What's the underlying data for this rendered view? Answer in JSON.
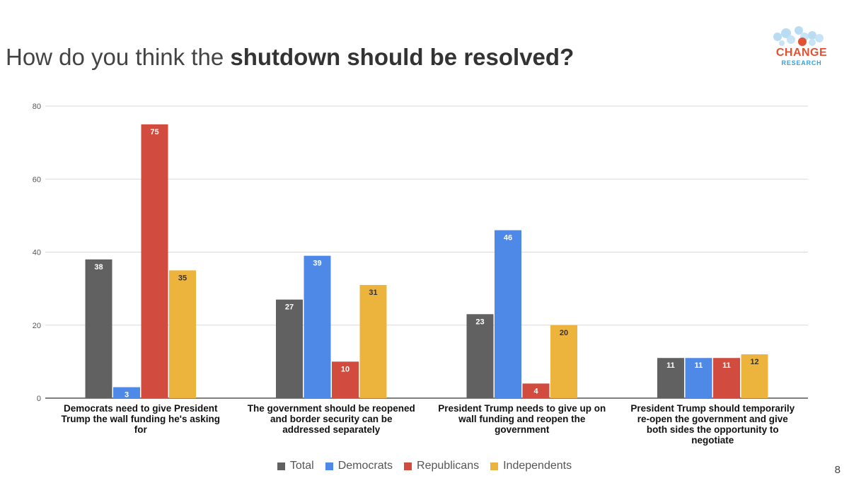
{
  "slide": {
    "title_prefix": "How do you think the ",
    "title_bold": "shutdown should be resolved?",
    "page_number": "8"
  },
  "logo": {
    "text": "CHANGE",
    "subtext": "RESEARCH",
    "colors": {
      "text": "#e05233",
      "sub": "#3aa0d8",
      "dots": "#b8dcf2",
      "accent_dot": "#e05233"
    }
  },
  "chart_data": {
    "type": "bar",
    "categories": [
      [
        "Democrats need to give President",
        "Trump the wall funding he's asking",
        "for"
      ],
      [
        "The government should be reopened",
        "and border security can be",
        "addressed separately"
      ],
      [
        "President Trump needs to give up on",
        "wall funding and reopen the",
        "government"
      ],
      [
        "President Trump should temporarily",
        "re-open the government and give",
        "both sides the opportunity to",
        "negotiate"
      ]
    ],
    "series": [
      {
        "name": "Total",
        "values": [
          38,
          27,
          23,
          11
        ],
        "color": "#616161",
        "label_color": "#ffffff"
      },
      {
        "name": "Democrats",
        "values": [
          3,
          39,
          46,
          11
        ],
        "color": "#4e89e8",
        "label_color": "#ffffff"
      },
      {
        "name": "Republicans",
        "values": [
          75,
          10,
          4,
          11
        ],
        "color": "#d14b3e",
        "label_color": "#ffffff"
      },
      {
        "name": "Independents",
        "values": [
          35,
          31,
          20,
          12
        ],
        "color": "#ecb43c",
        "label_color": "#333333"
      }
    ],
    "ylim": [
      0,
      80
    ],
    "yticks": [
      0,
      20,
      40,
      60,
      80
    ],
    "grid": true,
    "legend_position": "bottom"
  }
}
